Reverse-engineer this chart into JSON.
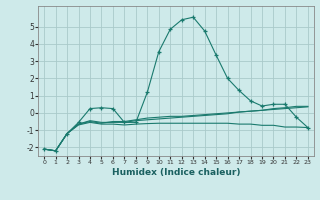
{
  "xlabel": "Humidex (Indice chaleur)",
  "bg_color": "#ceeaea",
  "grid_color": "#aacaca",
  "line_color": "#1a7a6e",
  "xlim": [
    -0.5,
    23.5
  ],
  "ylim": [
    -2.5,
    6.2
  ],
  "xticks": [
    0,
    1,
    2,
    3,
    4,
    5,
    6,
    7,
    8,
    9,
    10,
    11,
    12,
    13,
    14,
    15,
    16,
    17,
    18,
    19,
    20,
    21,
    22,
    23
  ],
  "yticks": [
    -2,
    -1,
    0,
    1,
    2,
    3,
    4,
    5
  ],
  "series": {
    "line1": {
      "x": [
        0,
        1,
        2,
        3,
        4,
        5,
        6,
        7,
        8,
        9,
        10,
        11,
        12,
        13,
        14,
        15,
        16,
        17,
        18,
        19,
        20,
        21,
        22,
        23
      ],
      "y": [
        -2.1,
        -2.2,
        -1.2,
        -0.7,
        -0.55,
        -0.65,
        -0.65,
        -0.7,
        -0.65,
        -0.62,
        -0.6,
        -0.6,
        -0.6,
        -0.6,
        -0.6,
        -0.6,
        -0.6,
        -0.65,
        -0.65,
        -0.72,
        -0.72,
        -0.82,
        -0.82,
        -0.85
      ]
    },
    "line2": {
      "x": [
        0,
        1,
        2,
        3,
        4,
        5,
        6,
        7,
        8,
        9,
        10,
        11,
        12,
        13,
        14,
        15,
        16,
        17,
        18,
        19,
        20,
        21,
        22,
        23
      ],
      "y": [
        -2.1,
        -2.2,
        -1.2,
        -0.65,
        -0.5,
        -0.6,
        -0.5,
        -0.5,
        -0.4,
        -0.3,
        -0.25,
        -0.2,
        -0.2,
        -0.15,
        -0.1,
        -0.05,
        0.0,
        0.05,
        0.1,
        0.15,
        0.2,
        0.25,
        0.3,
        0.35
      ]
    },
    "line3": {
      "x": [
        0,
        1,
        2,
        3,
        4,
        5,
        6,
        7,
        8,
        9,
        10,
        11,
        12,
        13,
        14,
        15,
        16,
        17,
        18,
        19,
        20,
        21,
        22,
        23
      ],
      "y": [
        -2.1,
        -2.2,
        -1.2,
        -0.65,
        -0.45,
        -0.55,
        -0.55,
        -0.55,
        -0.45,
        -0.4,
        -0.35,
        -0.3,
        -0.25,
        -0.2,
        -0.15,
        -0.1,
        -0.05,
        0.05,
        0.1,
        0.15,
        0.25,
        0.3,
        0.38,
        0.38
      ]
    },
    "line4": {
      "x": [
        0,
        1,
        2,
        3,
        4,
        5,
        6,
        7,
        8,
        9,
        10,
        11,
        12,
        13,
        14,
        15,
        16,
        17,
        18,
        19,
        20,
        21,
        22,
        23
      ],
      "y": [
        -2.1,
        -2.2,
        -1.2,
        -0.55,
        0.25,
        0.3,
        0.25,
        -0.55,
        -0.55,
        1.2,
        3.55,
        4.85,
        5.4,
        5.55,
        4.75,
        3.35,
        2.0,
        1.3,
        0.7,
        0.4,
        0.5,
        0.5,
        -0.25,
        -0.85
      ]
    }
  }
}
